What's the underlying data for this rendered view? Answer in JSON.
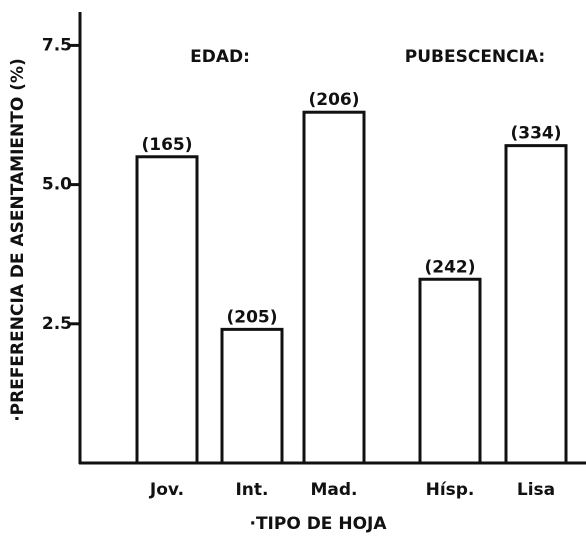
{
  "chart_data": {
    "type": "bar",
    "ylabel": "·PREFERENCIA DE ASENTAMIENTO (%)",
    "xlabel": "·TIPO DE HOJA",
    "group_labels": [
      "EDAD:",
      "PUBESCENCIA:"
    ],
    "categories": [
      "Jov.",
      "Int.",
      "Mad.",
      "Hísp.",
      "Lisa"
    ],
    "values": [
      5.5,
      2.4,
      6.3,
      3.3,
      5.7
    ],
    "n_labels": [
      "(165)",
      "(205)",
      "(206)",
      "(242)",
      "(334)"
    ],
    "color": "#ffffff",
    "ylim": [
      0,
      8.1
    ],
    "yticks": [
      2.5,
      {
        "value": 5,
        "label": "5.0"
      },
      7.5
    ],
    "grid": false
  }
}
